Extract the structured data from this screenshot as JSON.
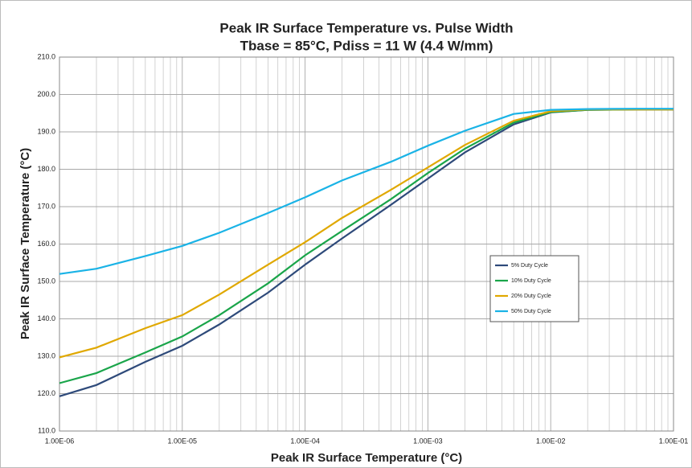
{
  "chart_data": {
    "type": "line",
    "title": "Peak IR Surface Temperature vs. Pulse Width",
    "subtitle": "Tbase = 85°C, Pdiss = 11 W (4.4 W/mm)",
    "xlabel": "Peak IR Surface Temperature (°C)",
    "ylabel": "Peak IR Surface Temperature (°C)",
    "xscale": "log",
    "grid": true,
    "legend": "right",
    "x": [
      1e-06,
      2e-06,
      5e-06,
      1e-05,
      2e-05,
      5e-05,
      0.0001,
      0.0002,
      0.0005,
      0.001,
      0.002,
      0.005,
      0.01,
      0.02,
      0.05,
      0.1
    ],
    "series": [
      {
        "name": "5% Duty Cycle",
        "color": "#2e4a7a",
        "values": [
          119.3,
          122.3,
          128.5,
          132.8,
          138.5,
          147,
          154.5,
          161.5,
          170.5,
          177.5,
          184.5,
          192,
          195.2,
          195.9,
          196,
          196
        ]
      },
      {
        "name": "10% Duty Cycle",
        "color": "#1aa54a",
        "values": [
          122.8,
          125.5,
          131,
          135.3,
          141,
          149.5,
          157,
          163.5,
          172,
          179,
          185.5,
          192.5,
          195.3,
          195.9,
          196,
          196
        ]
      },
      {
        "name": "20% Duty Cycle",
        "color": "#e0a800",
        "values": [
          129.7,
          132.3,
          137.5,
          141,
          146.5,
          154.5,
          160.5,
          167,
          174.5,
          180.5,
          186.5,
          193,
          195.5,
          196,
          196,
          196
        ]
      },
      {
        "name": "50% Duty Cycle",
        "color": "#1ab3e6",
        "values": [
          152,
          153.4,
          156.8,
          159.5,
          163,
          168.3,
          172.5,
          177,
          182,
          186.3,
          190.3,
          194.8,
          195.9,
          196.1,
          196.2,
          196.2
        ]
      }
    ],
    "xlim": [
      1e-06,
      0.1
    ],
    "xticks": [
      {
        "value": 1e-06,
        "label": "1.00E-06"
      },
      {
        "value": 1e-05,
        "label": "1.00E-05"
      },
      {
        "value": 0.0001,
        "label": "1.00E-04"
      },
      {
        "value": 0.001,
        "label": "1.00E-03"
      },
      {
        "value": 0.01,
        "label": "1.00E-02"
      },
      {
        "value": 0.1,
        "label": "1.00E-01"
      }
    ],
    "ylim": [
      110,
      210
    ],
    "yticks": [
      {
        "value": 110,
        "label": "110.0"
      },
      {
        "value": 120,
        "label": "120.0"
      },
      {
        "value": 130,
        "label": "130.0"
      },
      {
        "value": 140,
        "label": "140.0"
      },
      {
        "value": 150,
        "label": "150.0"
      },
      {
        "value": 160,
        "label": "160.0"
      },
      {
        "value": 170,
        "label": "170.0"
      },
      {
        "value": 180,
        "label": "180.0"
      },
      {
        "value": 190,
        "label": "190.0"
      },
      {
        "value": 200,
        "label": "200.0"
      },
      {
        "value": 210,
        "label": "210.0"
      }
    ]
  }
}
